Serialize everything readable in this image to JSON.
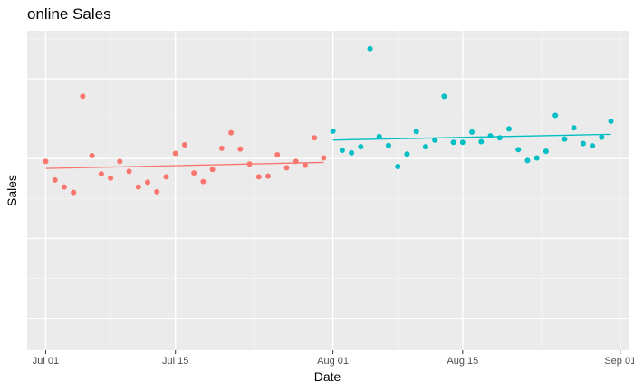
{
  "chart_data": {
    "type": "scatter",
    "title": "online Sales",
    "xlabel": "Date",
    "ylabel": "Sales",
    "x_range": [
      "2021-06-29",
      "2021-09-02"
    ],
    "y_range": [
      0,
      100
    ],
    "x_ticks": [
      {
        "date": "2021-07-01",
        "label": "Jul 01"
      },
      {
        "date": "2021-07-15",
        "label": "Jul 15"
      },
      {
        "date": "2021-08-01",
        "label": "Aug 01"
      },
      {
        "date": "2021-08-15",
        "label": "Aug 15"
      },
      {
        "date": "2021-09-01",
        "label": "Sep 01"
      }
    ],
    "y_major": [
      10,
      35,
      60,
      85
    ],
    "y_minor": [
      22.5,
      47.5,
      72.5,
      97.5
    ],
    "grid": true,
    "legend": "none",
    "background": "#EBEBEB",
    "series": [
      {
        "color": "#F8766D",
        "points": [
          [
            "2021-07-01",
            59.1
          ],
          [
            "2021-07-02",
            53.3
          ],
          [
            "2021-07-03",
            51.1
          ],
          [
            "2021-07-04",
            49.4
          ],
          [
            "2021-07-05",
            79.5
          ],
          [
            "2021-07-06",
            60.9
          ],
          [
            "2021-07-07",
            55.2
          ],
          [
            "2021-07-08",
            53.9
          ],
          [
            "2021-07-09",
            59.1
          ],
          [
            "2021-07-10",
            56.0
          ],
          [
            "2021-07-11",
            51.1
          ],
          [
            "2021-07-12",
            52.6
          ],
          [
            "2021-07-13",
            49.6
          ],
          [
            "2021-07-14",
            54.3
          ],
          [
            "2021-07-15",
            61.6
          ],
          [
            "2021-07-16",
            64.3
          ],
          [
            "2021-07-17",
            55.5
          ],
          [
            "2021-07-18",
            52.8
          ],
          [
            "2021-07-19",
            56.6
          ],
          [
            "2021-07-20",
            63.2
          ],
          [
            "2021-07-21",
            68.1
          ],
          [
            "2021-07-22",
            63.0
          ],
          [
            "2021-07-23",
            58.3
          ],
          [
            "2021-07-24",
            54.3
          ],
          [
            "2021-07-25",
            54.5
          ],
          [
            "2021-07-26",
            61.2
          ],
          [
            "2021-07-27",
            57.1
          ],
          [
            "2021-07-28",
            59.1
          ],
          [
            "2021-07-29",
            57.9
          ],
          [
            "2021-07-30",
            66.5
          ],
          [
            "2021-07-31",
            60.2
          ]
        ],
        "trend": [
          [
            "2021-07-01",
            56.9
          ],
          [
            "2021-07-31",
            58.8
          ]
        ]
      },
      {
        "color": "#00BFC4",
        "points": [
          [
            "2021-08-01",
            68.6
          ],
          [
            "2021-08-02",
            62.6
          ],
          [
            "2021-08-03",
            61.8
          ],
          [
            "2021-08-04",
            63.7
          ],
          [
            "2021-08-05",
            94.4
          ],
          [
            "2021-08-06",
            66.9
          ],
          [
            "2021-08-07",
            64.1
          ],
          [
            "2021-08-08",
            57.5
          ],
          [
            "2021-08-09",
            61.4
          ],
          [
            "2021-08-10",
            68.5
          ],
          [
            "2021-08-11",
            63.7
          ],
          [
            "2021-08-12",
            65.8
          ],
          [
            "2021-08-13",
            79.5
          ],
          [
            "2021-08-14",
            65.1
          ],
          [
            "2021-08-15",
            65.1
          ],
          [
            "2021-08-16",
            68.3
          ],
          [
            "2021-08-17",
            65.3
          ],
          [
            "2021-08-18",
            67.1
          ],
          [
            "2021-08-19",
            66.5
          ],
          [
            "2021-08-20",
            69.3
          ],
          [
            "2021-08-21",
            62.8
          ],
          [
            "2021-08-22",
            59.4
          ],
          [
            "2021-08-23",
            60.2
          ],
          [
            "2021-08-24",
            62.3
          ],
          [
            "2021-08-25",
            73.5
          ],
          [
            "2021-08-26",
            66.1
          ],
          [
            "2021-08-27",
            69.6
          ],
          [
            "2021-08-28",
            64.7
          ],
          [
            "2021-08-29",
            64.0
          ],
          [
            "2021-08-30",
            66.7
          ],
          [
            "2021-08-31",
            71.7
          ]
        ],
        "trend": [
          [
            "2021-08-01",
            65.8
          ],
          [
            "2021-08-31",
            67.6
          ]
        ]
      }
    ]
  }
}
